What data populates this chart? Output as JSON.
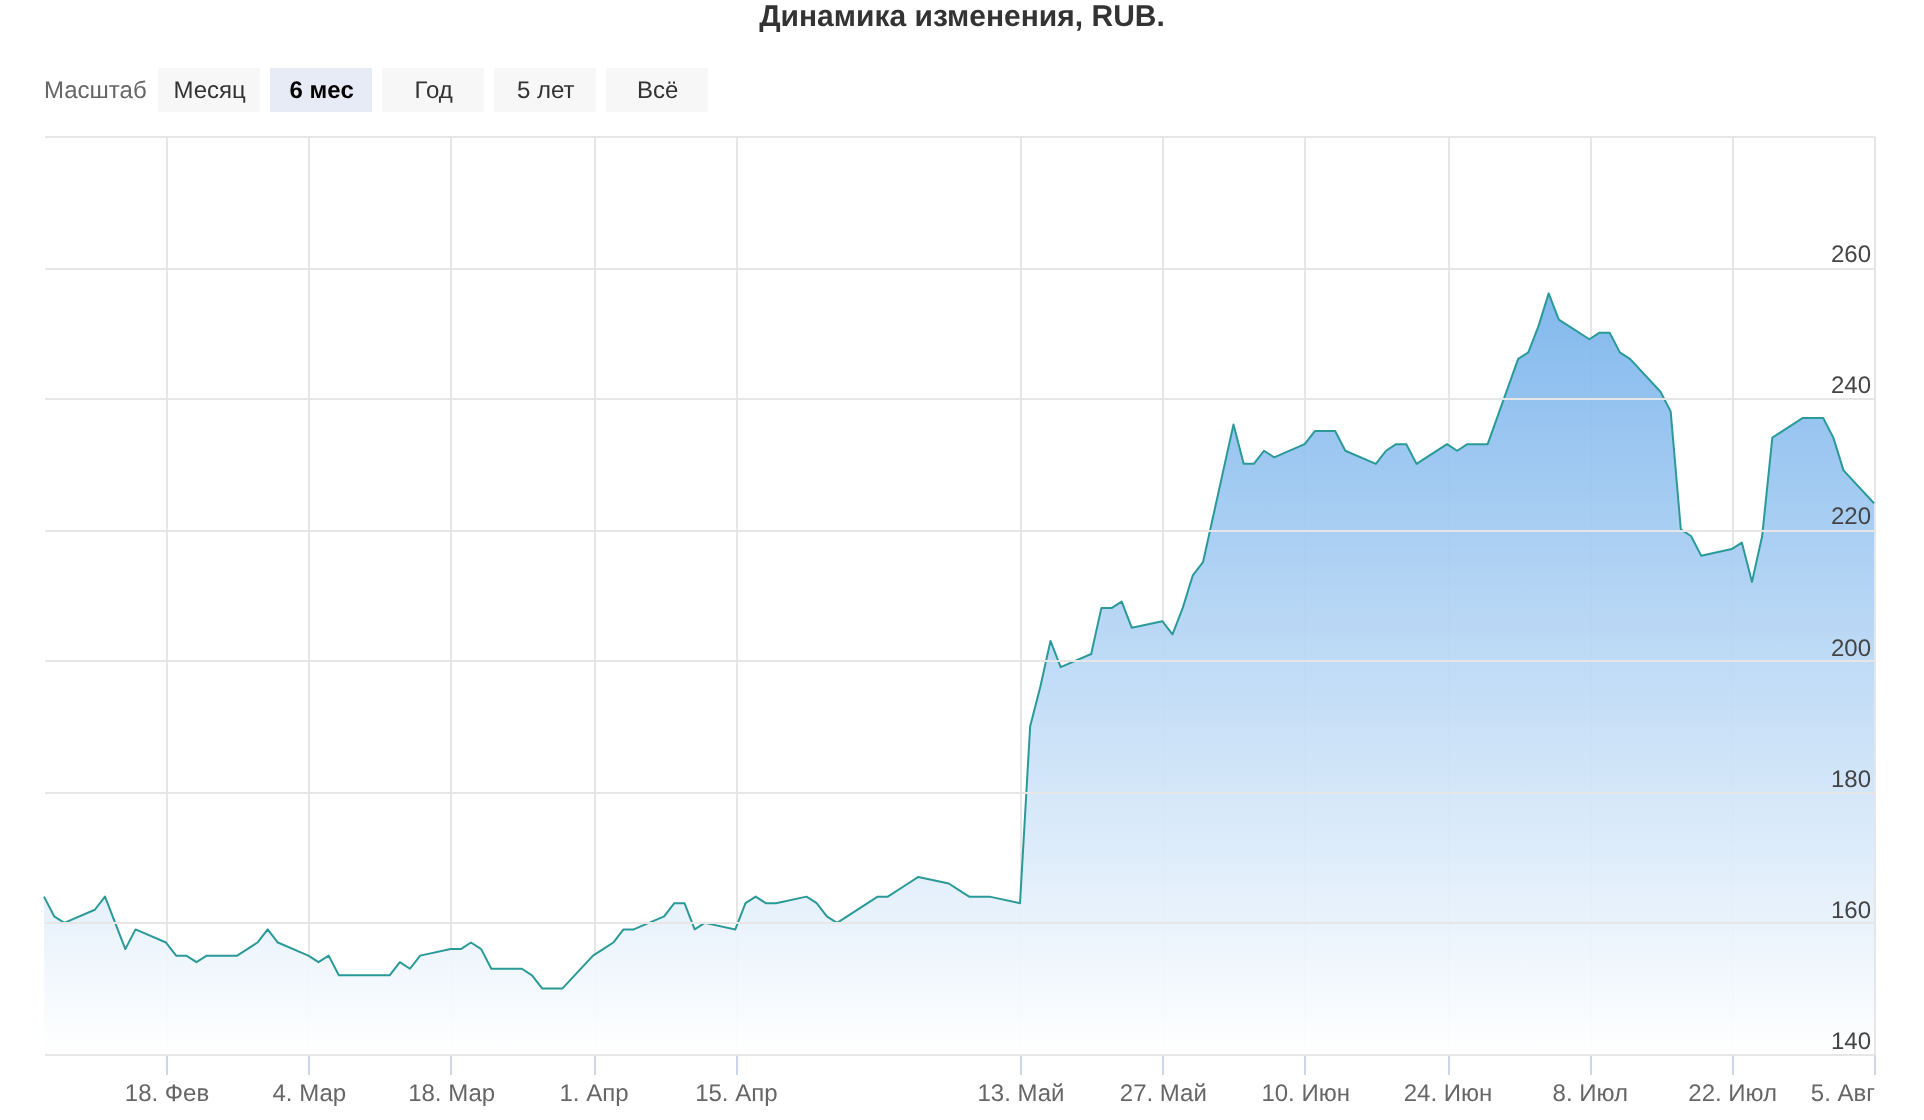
{
  "chart_data": {
    "type": "area",
    "title": "Динамика изменения, RUB.",
    "annotations": [
      "Масштаб",
      "Месяц",
      "6 мес",
      "Год",
      "5 лет",
      "Всё"
    ],
    "x": [
      "--02-06",
      "--02-07",
      "--02-08",
      "--02-11",
      "--02-12",
      "--02-14",
      "--02-15",
      "--02-18",
      "--02-19",
      "--02-20",
      "--02-21",
      "--02-22",
      "--02-25",
      "--02-26",
      "--02-27",
      "--02-28",
      "--03-01",
      "--03-04",
      "--03-05",
      "--03-06",
      "--03-07",
      "--03-11",
      "--03-12",
      "--03-13",
      "--03-14",
      "--03-15",
      "--03-18",
      "--03-19",
      "--03-20",
      "--03-21",
      "--03-22",
      "--03-25",
      "--03-26",
      "--03-27",
      "--03-28",
      "--03-29",
      "--04-01",
      "--04-02",
      "--04-03",
      "--04-04",
      "--04-05",
      "--04-08",
      "--04-09",
      "--04-10",
      "--04-11",
      "--04-12",
      "--04-15",
      "--04-16",
      "--04-17",
      "--04-18",
      "--04-19",
      "--04-22",
      "--04-23",
      "--04-24",
      "--04-25",
      "--04-26",
      "--04-29",
      "--04-30",
      "--05-02",
      "--05-03",
      "--05-06",
      "--05-07",
      "--05-08",
      "--05-10",
      "--05-13",
      "--05-14",
      "--05-15",
      "--05-16",
      "--05-17",
      "--05-20",
      "--05-21",
      "--05-22",
      "--05-23",
      "--05-24",
      "--05-27",
      "--05-28",
      "--05-29",
      "--05-30",
      "--05-31",
      "--06-03",
      "--06-04",
      "--06-05",
      "--06-06",
      "--06-07",
      "--06-10",
      "--06-11",
      "--06-13",
      "--06-14",
      "--06-17",
      "--06-18",
      "--06-19",
      "--06-20",
      "--06-21",
      "--06-24",
      "--06-25",
      "--06-26",
      "--06-27",
      "--06-28",
      "--07-01",
      "--07-02",
      "--07-03",
      "--07-04",
      "--07-05",
      "--07-08",
      "--07-09",
      "--07-10",
      "--07-11",
      "--07-12",
      "--07-15",
      "--07-16",
      "--07-17",
      "--07-18",
      "--07-19",
      "--07-22",
      "--07-23",
      "--07-24",
      "--07-25",
      "--07-26",
      "--07-29",
      "--07-30",
      "--07-31",
      "--08-01",
      "--08-02",
      "--08-05"
    ],
    "series": [
      {
        "color": "#7cb5ec",
        "values": [
          164,
          161,
          160,
          162,
          164,
          156,
          159,
          157,
          155,
          155,
          154,
          155,
          155,
          156,
          157,
          159,
          157,
          155,
          154,
          155,
          152,
          152,
          152,
          154,
          153,
          155,
          156,
          156,
          157,
          156,
          153,
          153,
          152,
          150,
          150,
          150,
          155,
          156,
          157,
          159,
          159,
          161,
          163,
          163,
          159,
          160,
          159,
          163,
          164,
          163,
          163,
          164,
          163,
          161,
          160,
          161,
          164,
          164,
          166,
          167,
          166,
          165,
          164,
          164,
          163,
          190,
          196,
          203,
          199,
          201,
          208,
          208,
          209,
          205,
          206,
          204,
          208,
          213,
          215,
          236,
          230,
          230,
          232,
          231,
          233,
          235,
          235,
          232,
          230,
          232,
          233,
          233,
          230,
          233,
          232,
          233,
          233,
          233,
          246,
          247,
          251,
          256,
          252,
          249,
          250,
          250,
          247,
          246,
          241,
          238,
          220,
          219,
          216,
          217,
          218,
          212,
          219,
          234,
          237,
          237,
          237,
          234,
          229,
          224
        ]
      }
    ],
    "xlim": [
      "--02-06",
      "--08-05"
    ],
    "xticks": [
      {
        "value": "--02-18",
        "label": "18. Фев"
      },
      {
        "value": "--03-04",
        "label": "4. Мар"
      },
      {
        "value": "--03-18",
        "label": "18. Мар"
      },
      {
        "value": "--04-01",
        "label": "1. Апр"
      },
      {
        "value": "--04-15",
        "label": "15. Апр"
      },
      {
        "value": "--05-13",
        "label": "13. Май"
      },
      {
        "value": "--05-27",
        "label": "27. Май"
      },
      {
        "value": "--06-10",
        "label": "10. Июн"
      },
      {
        "value": "--06-24",
        "label": "24. Июн"
      },
      {
        "value": "--07-08",
        "label": "8. Июл"
      },
      {
        "value": "--07-22",
        "label": "22. Июл"
      },
      {
        "value": "--08-05",
        "label": "5. Авг"
      }
    ],
    "ylim": [
      140,
      280
    ],
    "yticks": [
      140,
      160,
      180,
      200,
      220,
      240,
      260,
      {
        "value": 280,
        "label": null
      }
    ],
    "grid": true,
    "marker": "none"
  }
}
